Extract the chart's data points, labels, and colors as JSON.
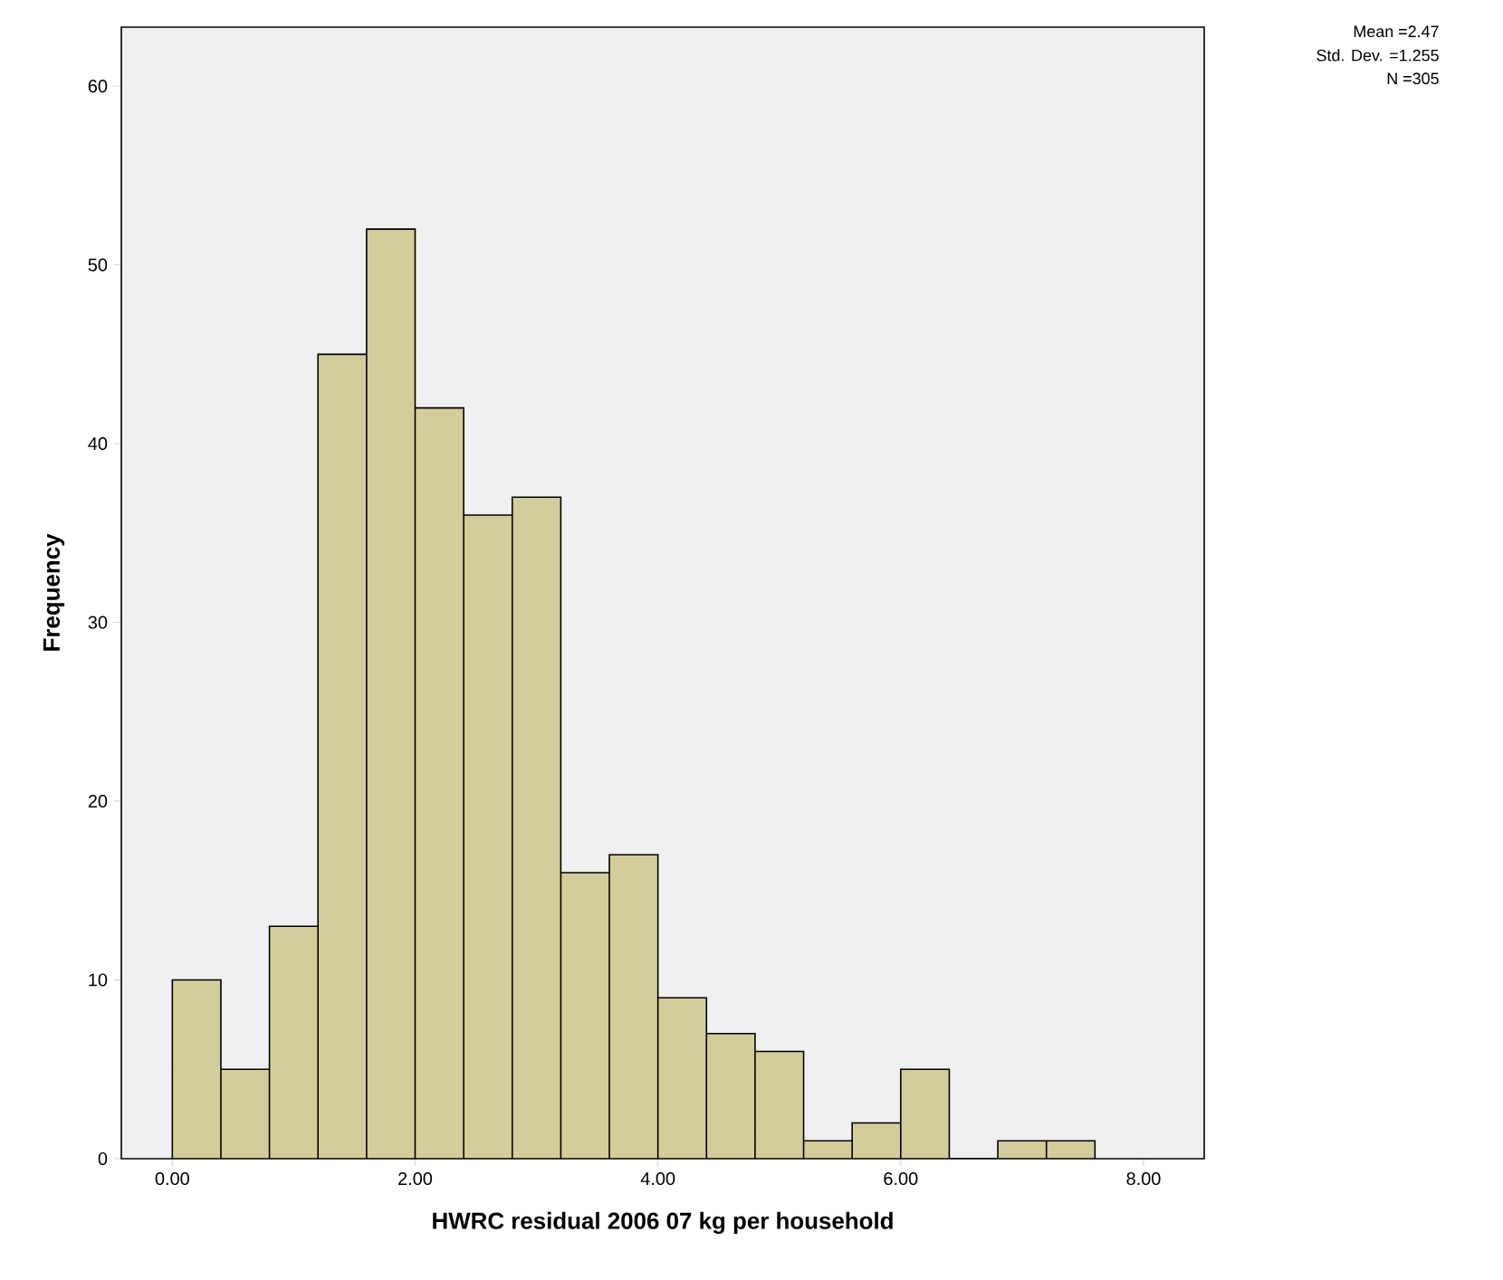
{
  "chart_data": {
    "type": "histogram",
    "xlabel": "HWRC residual 2006 07 kg per household",
    "ylabel": "Frequency",
    "bins": [
      0.0,
      0.4,
      0.8,
      1.2,
      1.6,
      2.0,
      2.4,
      2.8,
      3.2,
      3.6,
      4.0,
      4.4,
      4.8,
      5.2,
      5.6,
      6.0,
      6.4,
      6.8,
      7.2,
      7.6
    ],
    "values": [
      10,
      5,
      13,
      45,
      52,
      42,
      36,
      37,
      16,
      17,
      9,
      7,
      6,
      1,
      2,
      5,
      0,
      1,
      1
    ],
    "color": "#d3cd9b",
    "xlim": [
      -0.42,
      8.5
    ],
    "ylim": [
      0,
      63.3
    ],
    "xticks": [
      {
        "value": 0,
        "label": "0.00"
      },
      {
        "value": 2,
        "label": "2.00"
      },
      {
        "value": 4,
        "label": "4.00"
      },
      {
        "value": 6,
        "label": "6.00"
      },
      {
        "value": 8,
        "label": "8.00"
      }
    ],
    "yticks": [
      0,
      10,
      20,
      30,
      40,
      50,
      60
    ],
    "annotations": [
      "Mean =2.47",
      "Std. Dev. =1.255",
      "N =305"
    ]
  }
}
